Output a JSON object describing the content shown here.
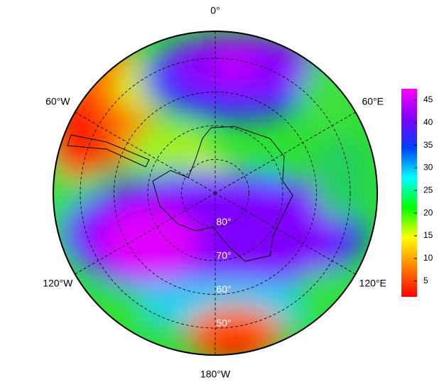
{
  "map_data": {
    "projection": "south-polar",
    "longitudes": [
      {
        "value": 0,
        "label": "0°"
      },
      {
        "value": 60,
        "label": "60°E"
      },
      {
        "value": 120,
        "label": "120°E"
      },
      {
        "value": 180,
        "label": "180°W"
      },
      {
        "value": -120,
        "label": "120°W"
      },
      {
        "value": -60,
        "label": "60°W"
      }
    ],
    "latitudes": [
      {
        "value": 80,
        "label": "80°"
      },
      {
        "value": 70,
        "label": "70°"
      },
      {
        "value": 60,
        "label": "60°"
      },
      {
        "value": 50,
        "label": "50°"
      }
    ],
    "colorbar": {
      "lim": [
        1.5,
        47.5
      ],
      "ticks": [
        5,
        10,
        15,
        20,
        25,
        30,
        35,
        40,
        45
      ],
      "colors": [
        "#ff0000",
        "#ff8000",
        "#ffff00",
        "#00ff00",
        "#00ffff",
        "#0040ff",
        "#8000ff",
        "#ff00ff"
      ]
    }
  }
}
